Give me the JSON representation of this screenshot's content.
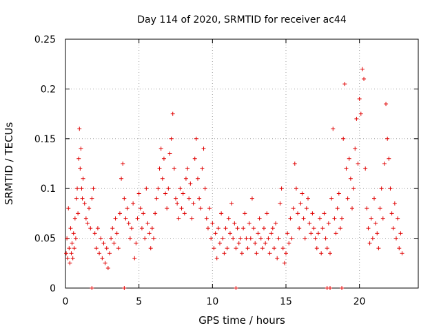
{
  "chart_data": {
    "type": "scatter",
    "title": "Day 114 of 2020, SRMTID for receiver ac44",
    "xlabel": "GPS time / hours",
    "ylabel": "SRMTID / TECUs",
    "xlim": [
      0,
      24
    ],
    "ylim": [
      0,
      0.25
    ],
    "xticks": [
      0,
      5,
      10,
      15,
      20
    ],
    "xtick_labels": [
      "0",
      "5",
      "10",
      "15",
      "20"
    ],
    "yticks": [
      0,
      0.05,
      0.1,
      0.15,
      0.2,
      0.25
    ],
    "ytick_labels": [
      "0",
      "0.05",
      "0.1",
      "0.15",
      "0.2",
      "0.25"
    ],
    "grid": true,
    "marker": "+",
    "color": "#e00000",
    "series": [
      {
        "name": "SRMTID",
        "points": [
          [
            0.05,
            0.035
          ],
          [
            0.1,
            0.05
          ],
          [
            0.15,
            0.03
          ],
          [
            0.2,
            0.08
          ],
          [
            0.25,
            0.04
          ],
          [
            0.3,
            0.025
          ],
          [
            0.35,
            0.06
          ],
          [
            0.4,
            0.035
          ],
          [
            0.45,
            0.045
          ],
          [
            0.5,
            0.03
          ],
          [
            0.55,
            0.055
          ],
          [
            0.6,
            0.04
          ],
          [
            0.65,
            0.07
          ],
          [
            0.7,
            0.05
          ],
          [
            0.75,
            0.09
          ],
          [
            0.8,
            0.1
          ],
          [
            0.85,
            0.075
          ],
          [
            0.9,
            0.13
          ],
          [
            0.95,
            0.16
          ],
          [
            1.0,
            0.12
          ],
          [
            1.05,
            0.14
          ],
          [
            1.1,
            0.1
          ],
          [
            1.15,
            0.09
          ],
          [
            1.2,
            0.11
          ],
          [
            1.3,
            0.085
          ],
          [
            1.4,
            0.07
          ],
          [
            1.5,
            0.065
          ],
          [
            1.6,
            0.08
          ],
          [
            1.7,
            0.06
          ],
          [
            1.8,
            0.09
          ],
          [
            1.9,
            0.1
          ],
          [
            2.0,
            0.055
          ],
          [
            2.1,
            0.04
          ],
          [
            2.2,
            0.06
          ],
          [
            2.3,
            0.035
          ],
          [
            2.4,
            0.05
          ],
          [
            2.5,
            0.03
          ],
          [
            2.6,
            0.045
          ],
          [
            2.7,
            0.025
          ],
          [
            2.8,
            0.04
          ],
          [
            2.9,
            0.02
          ],
          [
            3.0,
            0.035
          ],
          [
            3.1,
            0.05
          ],
          [
            3.2,
            0.06
          ],
          [
            3.3,
            0.045
          ],
          [
            3.4,
            0.07
          ],
          [
            3.5,
            0.055
          ],
          [
            3.6,
            0.04
          ],
          [
            3.7,
            0.075
          ],
          [
            3.8,
            0.11
          ],
          [
            3.9,
            0.125
          ],
          [
            4.0,
            0.09
          ],
          [
            4.1,
            0.07
          ],
          [
            4.2,
            0.08
          ],
          [
            4.3,
            0.065
          ],
          [
            4.4,
            0.05
          ],
          [
            4.5,
            0.06
          ],
          [
            4.6,
            0.085
          ],
          [
            4.7,
            0.03
          ],
          [
            4.8,
            0.045
          ],
          [
            4.9,
            0.07
          ],
          [
            5.0,
            0.095
          ],
          [
            5.1,
            0.08
          ],
          [
            5.2,
            0.06
          ],
          [
            5.3,
            0.075
          ],
          [
            5.4,
            0.05
          ],
          [
            5.5,
            0.1
          ],
          [
            5.6,
            0.065
          ],
          [
            5.7,
            0.055
          ],
          [
            5.8,
            0.04
          ],
          [
            5.9,
            0.06
          ],
          [
            6.0,
            0.05
          ],
          [
            6.1,
            0.075
          ],
          [
            6.2,
            0.09
          ],
          [
            6.3,
            0.1
          ],
          [
            6.4,
            0.12
          ],
          [
            6.5,
            0.14
          ],
          [
            6.6,
            0.11
          ],
          [
            6.7,
            0.13
          ],
          [
            6.8,
            0.095
          ],
          [
            6.9,
            0.08
          ],
          [
            7.0,
            0.1
          ],
          [
            7.1,
            0.135
          ],
          [
            7.2,
            0.15
          ],
          [
            7.3,
            0.175
          ],
          [
            7.4,
            0.12
          ],
          [
            7.5,
            0.09
          ],
          [
            7.6,
            0.085
          ],
          [
            7.7,
            0.07
          ],
          [
            7.8,
            0.1
          ],
          [
            7.9,
            0.08
          ],
          [
            8.0,
            0.095
          ],
          [
            8.1,
            0.075
          ],
          [
            8.2,
            0.11
          ],
          [
            8.3,
            0.12
          ],
          [
            8.4,
            0.09
          ],
          [
            8.5,
            0.105
          ],
          [
            8.6,
            0.07
          ],
          [
            8.7,
            0.085
          ],
          [
            8.8,
            0.13
          ],
          [
            8.9,
            0.15
          ],
          [
            9.0,
            0.11
          ],
          [
            9.1,
            0.09
          ],
          [
            9.2,
            0.08
          ],
          [
            9.3,
            0.12
          ],
          [
            9.4,
            0.14
          ],
          [
            9.5,
            0.1
          ],
          [
            9.6,
            0.07
          ],
          [
            9.7,
            0.06
          ],
          [
            9.8,
            0.08
          ],
          [
            9.9,
            0.05
          ],
          [
            10.0,
            0.065
          ],
          [
            10.1,
            0.04
          ],
          [
            10.2,
            0.055
          ],
          [
            10.3,
            0.03
          ],
          [
            10.4,
            0.06
          ],
          [
            10.5,
            0.045
          ],
          [
            10.6,
            0.075
          ],
          [
            10.7,
            0.05
          ],
          [
            10.8,
            0.035
          ],
          [
            10.9,
            0.06
          ],
          [
            11.0,
            0.04
          ],
          [
            11.1,
            0.07
          ],
          [
            11.2,
            0.055
          ],
          [
            11.3,
            0.085
          ],
          [
            11.4,
            0.05
          ],
          [
            11.5,
            0.065
          ],
          [
            11.6,
            0.04
          ],
          [
            11.7,
            0.06
          ],
          [
            11.8,
            0.045
          ],
          [
            11.9,
            0.05
          ],
          [
            12.0,
            0.035
          ],
          [
            12.1,
            0.06
          ],
          [
            12.2,
            0.075
          ],
          [
            12.3,
            0.05
          ],
          [
            12.4,
            0.04
          ],
          [
            12.5,
            0.065
          ],
          [
            12.6,
            0.05
          ],
          [
            12.7,
            0.09
          ],
          [
            12.8,
            0.06
          ],
          [
            12.9,
            0.045
          ],
          [
            13.0,
            0.035
          ],
          [
            13.1,
            0.055
          ],
          [
            13.2,
            0.07
          ],
          [
            13.3,
            0.05
          ],
          [
            13.4,
            0.04
          ],
          [
            13.5,
            0.06
          ],
          [
            13.6,
            0.045
          ],
          [
            13.7,
            0.075
          ],
          [
            13.8,
            0.05
          ],
          [
            13.9,
            0.035
          ],
          [
            14.0,
            0.055
          ],
          [
            14.1,
            0.06
          ],
          [
            14.2,
            0.04
          ],
          [
            14.3,
            0.065
          ],
          [
            14.4,
            0.03
          ],
          [
            14.5,
            0.05
          ],
          [
            14.6,
            0.085
          ],
          [
            14.7,
            0.1
          ],
          [
            14.8,
            0.04
          ],
          [
            14.9,
            0.025
          ],
          [
            15.0,
            0.035
          ],
          [
            15.1,
            0.055
          ],
          [
            15.2,
            0.045
          ],
          [
            15.3,
            0.07
          ],
          [
            15.4,
            0.05
          ],
          [
            15.5,
            0.08
          ],
          [
            15.6,
            0.125
          ],
          [
            15.7,
            0.1
          ],
          [
            15.8,
            0.075
          ],
          [
            15.9,
            0.06
          ],
          [
            16.0,
            0.085
          ],
          [
            16.1,
            0.095
          ],
          [
            16.2,
            0.07
          ],
          [
            16.3,
            0.05
          ],
          [
            16.4,
            0.08
          ],
          [
            16.5,
            0.09
          ],
          [
            16.6,
            0.065
          ],
          [
            16.7,
            0.055
          ],
          [
            16.8,
            0.075
          ],
          [
            16.9,
            0.06
          ],
          [
            17.0,
            0.05
          ],
          [
            17.1,
            0.04
          ],
          [
            17.2,
            0.055
          ],
          [
            17.3,
            0.07
          ],
          [
            17.4,
            0.035
          ],
          [
            17.5,
            0.06
          ],
          [
            17.6,
            0.075
          ],
          [
            17.7,
            0.05
          ],
          [
            17.8,
            0.04
          ],
          [
            17.9,
            0.065
          ],
          [
            18.0,
            0.035
          ],
          [
            18.1,
            0.09
          ],
          [
            18.2,
            0.16
          ],
          [
            18.3,
            0.07
          ],
          [
            18.4,
            0.055
          ],
          [
            18.5,
            0.08
          ],
          [
            18.6,
            0.095
          ],
          [
            18.7,
            0.06
          ],
          [
            18.8,
            0.07
          ],
          [
            18.9,
            0.15
          ],
          [
            19.0,
            0.205
          ],
          [
            19.1,
            0.12
          ],
          [
            19.2,
            0.09
          ],
          [
            19.3,
            0.13
          ],
          [
            19.4,
            0.11
          ],
          [
            19.5,
            0.08
          ],
          [
            19.6,
            0.1
          ],
          [
            19.7,
            0.14
          ],
          [
            19.8,
            0.17
          ],
          [
            19.9,
            0.125
          ],
          [
            20.0,
            0.19
          ],
          [
            20.1,
            0.175
          ],
          [
            20.2,
            0.22
          ],
          [
            20.3,
            0.21
          ],
          [
            20.4,
            0.12
          ],
          [
            20.5,
            0.08
          ],
          [
            20.6,
            0.06
          ],
          [
            20.7,
            0.045
          ],
          [
            20.8,
            0.07
          ],
          [
            20.9,
            0.05
          ],
          [
            21.0,
            0.09
          ],
          [
            21.1,
            0.065
          ],
          [
            21.2,
            0.055
          ],
          [
            21.3,
            0.04
          ],
          [
            21.4,
            0.08
          ],
          [
            21.5,
            0.1
          ],
          [
            21.6,
            0.07
          ],
          [
            21.7,
            0.125
          ],
          [
            21.8,
            0.185
          ],
          [
            21.9,
            0.15
          ],
          [
            22.0,
            0.13
          ],
          [
            22.1,
            0.1
          ],
          [
            22.2,
            0.075
          ],
          [
            22.3,
            0.06
          ],
          [
            22.4,
            0.085
          ],
          [
            22.5,
            0.05
          ],
          [
            22.6,
            0.07
          ],
          [
            22.7,
            0.04
          ],
          [
            22.8,
            0.055
          ],
          [
            22.9,
            0.035
          ]
        ]
      }
    ],
    "gap_markers": [
      1.8,
      4.0,
      11.6,
      17.8,
      18.0,
      18.8
    ]
  }
}
